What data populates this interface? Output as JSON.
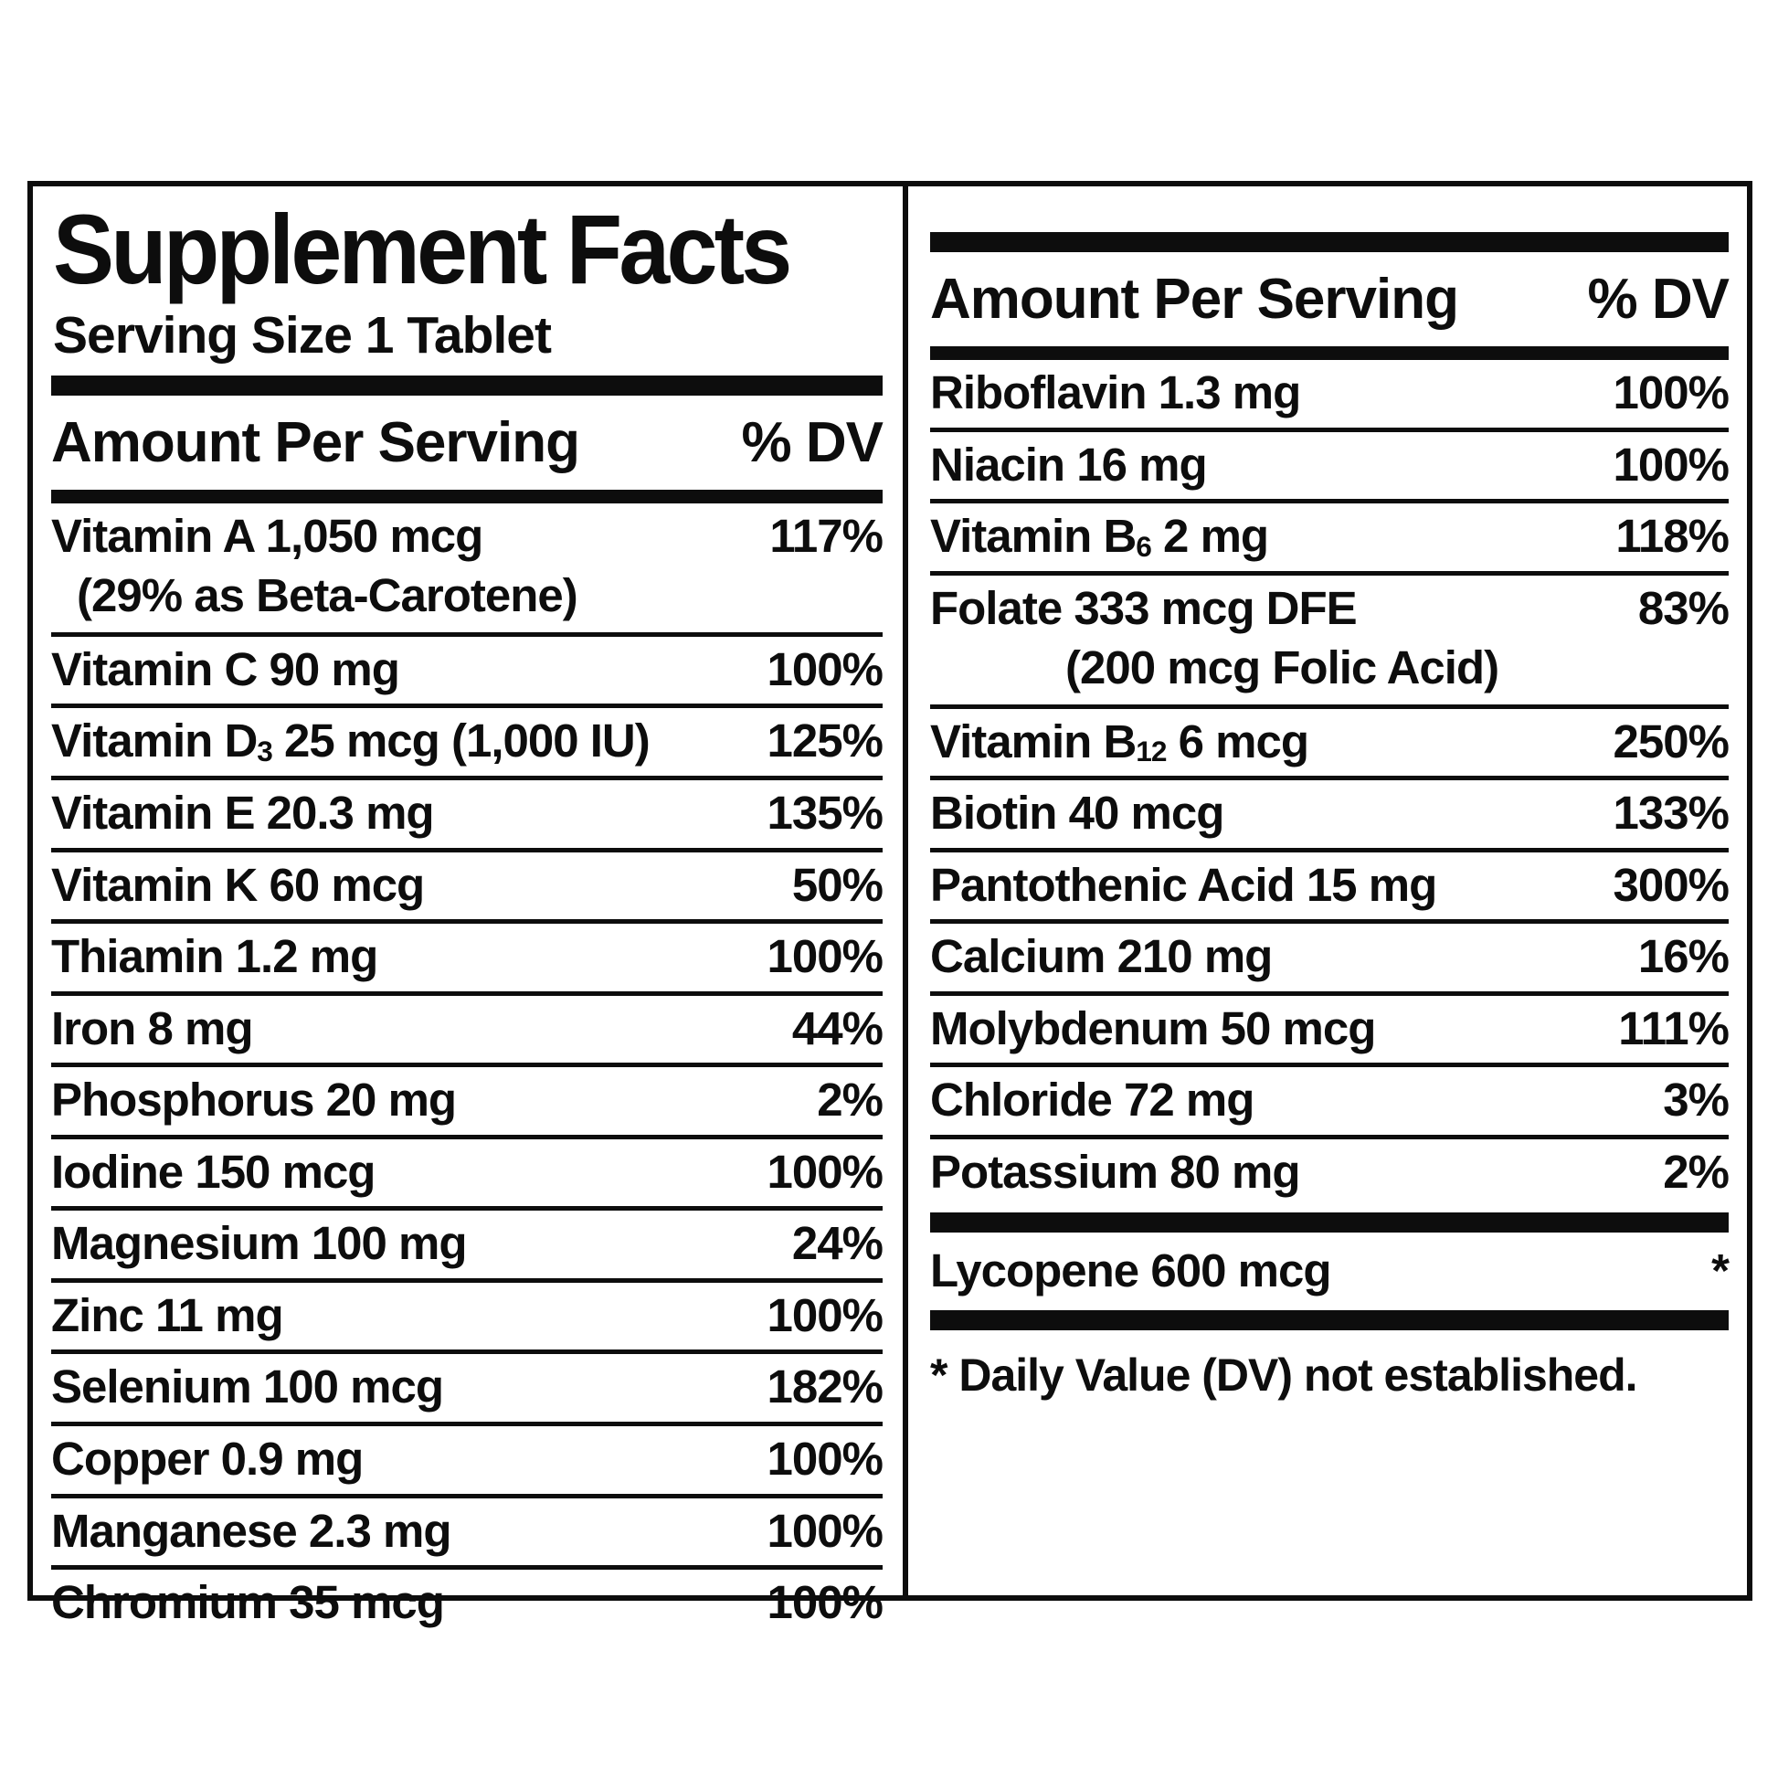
{
  "label": {
    "title": "Supplement Facts",
    "serving_size": "Serving Size 1 Tablet",
    "column_header": {
      "amount": "Amount Per Serving",
      "dv": "% DV"
    },
    "left_rows": [
      {
        "label": [
          {
            "t": "Vitamin A 1,050 mcg"
          }
        ],
        "sub_line": "(29% as Beta-Carotene)",
        "dv": "117%"
      },
      {
        "label": [
          {
            "t": "Vitamin C 90 mg"
          }
        ],
        "dv": "100%"
      },
      {
        "label": [
          {
            "t": "Vitamin D"
          },
          {
            "t": "3",
            "sub": true
          },
          {
            "t": " 25 mcg (1,000 IU)"
          }
        ],
        "dv": "125%"
      },
      {
        "label": [
          {
            "t": "Vitamin E 20.3 mg"
          }
        ],
        "dv": "135%"
      },
      {
        "label": [
          {
            "t": "Vitamin K 60 mcg"
          }
        ],
        "dv": "50%"
      },
      {
        "label": [
          {
            "t": "Thiamin 1.2 mg"
          }
        ],
        "dv": "100%"
      },
      {
        "label": [
          {
            "t": "Iron 8 mg"
          }
        ],
        "dv": "44%"
      },
      {
        "label": [
          {
            "t": "Phosphorus 20 mg"
          }
        ],
        "dv": "2%"
      },
      {
        "label": [
          {
            "t": "Iodine 150 mcg"
          }
        ],
        "dv": "100%"
      },
      {
        "label": [
          {
            "t": "Magnesium 100 mg"
          }
        ],
        "dv": "24%"
      },
      {
        "label": [
          {
            "t": "Zinc 11 mg"
          }
        ],
        "dv": "100%"
      },
      {
        "label": [
          {
            "t": "Selenium 100 mcg"
          }
        ],
        "dv": "182%"
      },
      {
        "label": [
          {
            "t": "Copper 0.9 mg"
          }
        ],
        "dv": "100%"
      },
      {
        "label": [
          {
            "t": "Manganese 2.3 mg"
          }
        ],
        "dv": "100%"
      },
      {
        "label": [
          {
            "t": "Chromium 35 mcg"
          }
        ],
        "dv": "100%"
      }
    ],
    "right_rows": [
      {
        "label": [
          {
            "t": "Riboflavin 1.3 mg"
          }
        ],
        "dv": "100%"
      },
      {
        "label": [
          {
            "t": "Niacin 16 mg"
          }
        ],
        "dv": "100%"
      },
      {
        "label": [
          {
            "t": "Vitamin B"
          },
          {
            "t": "6",
            "sub": true
          },
          {
            "t": " 2 mg"
          }
        ],
        "dv": "118%"
      },
      {
        "label": [
          {
            "t": "Folate 333 mcg DFE"
          }
        ],
        "sub_line": "(200 mcg Folic Acid)",
        "sub_line_centered": true,
        "dv": "83%"
      },
      {
        "label": [
          {
            "t": "Vitamin B"
          },
          {
            "t": "12",
            "sub": true
          },
          {
            "t": " 6 mcg"
          }
        ],
        "dv": "250%"
      },
      {
        "label": [
          {
            "t": "Biotin 40 mcg"
          }
        ],
        "dv": "133%"
      },
      {
        "label": [
          {
            "t": "Pantothenic Acid 15 mg"
          }
        ],
        "dv": "300%"
      },
      {
        "label": [
          {
            "t": "Calcium 210 mg"
          }
        ],
        "dv": "16%"
      },
      {
        "label": [
          {
            "t": "Molybdenum 50 mcg"
          }
        ],
        "dv": "111%"
      },
      {
        "label": [
          {
            "t": "Chloride 72 mg"
          }
        ],
        "dv": "3%"
      },
      {
        "label": [
          {
            "t": "Potassium 80 mg"
          }
        ],
        "dv": "2%"
      }
    ],
    "no_dv_rows": [
      {
        "label": [
          {
            "t": "Lycopene 600 mcg"
          }
        ],
        "dv": "*"
      }
    ],
    "footnote": "* Daily Value (DV) not established.",
    "colors": {
      "ink": "#0d0d0d",
      "background": "#ffffff"
    }
  }
}
